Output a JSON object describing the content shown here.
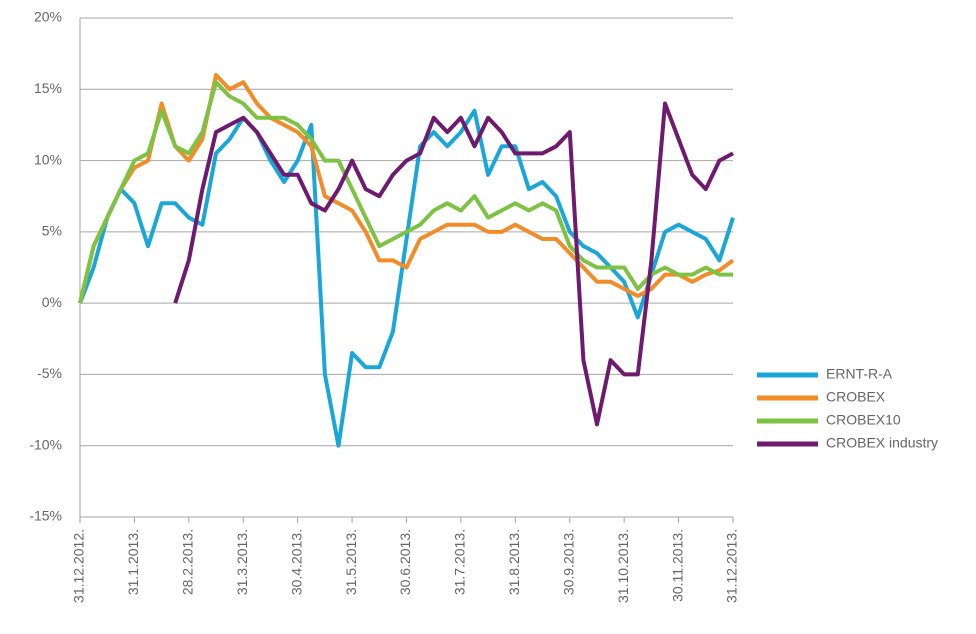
{
  "chart_data": {
    "type": "line",
    "x": [
      "31.12.2012.",
      null,
      null,
      null,
      "31.1.2013.",
      null,
      null,
      null,
      "28.2.2013.",
      null,
      null,
      null,
      "31.3.2013.",
      null,
      null,
      null,
      "30.4.2013.",
      null,
      null,
      null,
      "31.5.2013.",
      null,
      null,
      null,
      "30.6.2013.",
      null,
      null,
      null,
      "31.7.2013.",
      null,
      null,
      null,
      "31.8.2013.",
      null,
      null,
      null,
      "30.9.2013.",
      null,
      null,
      null,
      "31.10.2013.",
      null,
      null,
      null,
      "30.11.2013.",
      null,
      null,
      null,
      "31.12.2013."
    ],
    "series": [
      {
        "name": "ERNT-R-A",
        "color": "#1aa7d8",
        "values": [
          0,
          2.5,
          6,
          8,
          7,
          4,
          7,
          7,
          6,
          5.5,
          10.5,
          11.5,
          13,
          12,
          10,
          8.5,
          10,
          12.5,
          -5,
          -10,
          -3.5,
          -4.5,
          -4.5,
          -2,
          4.5,
          11,
          12,
          11,
          12,
          13.5,
          9,
          11,
          11,
          8,
          8.5,
          7.5,
          5,
          4,
          3.5,
          2.5,
          1.5,
          -1,
          2,
          5,
          5.5,
          5,
          4.5,
          3,
          6
        ]
      },
      {
        "name": "CROBEX",
        "color": "#f28c28",
        "values": [
          0,
          4,
          6,
          8,
          9.5,
          10,
          14,
          11,
          10,
          11.5,
          16,
          15,
          15.5,
          14,
          13,
          12.5,
          12,
          11,
          7.5,
          7,
          6.5,
          5,
          3,
          3,
          2.5,
          4.5,
          5,
          5.5,
          5.5,
          5.5,
          5,
          5,
          5.5,
          5,
          4.5,
          4.5,
          3.5,
          2.5,
          1.5,
          1.5,
          1,
          0.5,
          1,
          2,
          2,
          1.5,
          2,
          2.3,
          3
        ]
      },
      {
        "name": "CROBEX10",
        "color": "#7dc242",
        "values": [
          0,
          4,
          6,
          8,
          10,
          10.5,
          13.5,
          11,
          10.5,
          12,
          15.5,
          14.5,
          14,
          13,
          13,
          13,
          12.5,
          11.5,
          10,
          10,
          8,
          6,
          4,
          4.5,
          5,
          5.5,
          6.5,
          7,
          6.5,
          7.5,
          6,
          6.5,
          7,
          6.5,
          7,
          6.5,
          4,
          3,
          2.5,
          2.5,
          2.5,
          1,
          2,
          2.5,
          2,
          2,
          2.5,
          2,
          2
        ]
      },
      {
        "name": "CROBEX industry",
        "color": "#6e1a6e",
        "values": [
          null,
          null,
          null,
          null,
          null,
          null,
          null,
          0,
          3,
          8,
          12,
          12.5,
          13,
          12,
          10.5,
          9,
          9,
          7,
          6.5,
          8,
          10,
          8,
          7.5,
          9,
          10,
          10.5,
          13,
          12,
          13,
          11,
          13,
          12,
          10.5,
          10.5,
          10.5,
          11,
          12,
          -4,
          -8.5,
          -4,
          -5,
          -5,
          3,
          14,
          11.5,
          9,
          8,
          10,
          10.5
        ]
      }
    ],
    "ylim": [
      -15,
      20
    ],
    "yticks": [
      {
        "value": -15,
        "label": "-15%"
      },
      {
        "value": -10,
        "label": "-10%"
      },
      {
        "value": -5,
        "label": "-5%"
      },
      {
        "value": 0,
        "label": "0%"
      },
      {
        "value": 5,
        "label": "5%"
      },
      {
        "value": 10,
        "label": "10%"
      },
      {
        "value": 15,
        "label": "15%"
      },
      {
        "value": 20,
        "label": "20%"
      }
    ],
    "grid": true,
    "legend": "right"
  }
}
